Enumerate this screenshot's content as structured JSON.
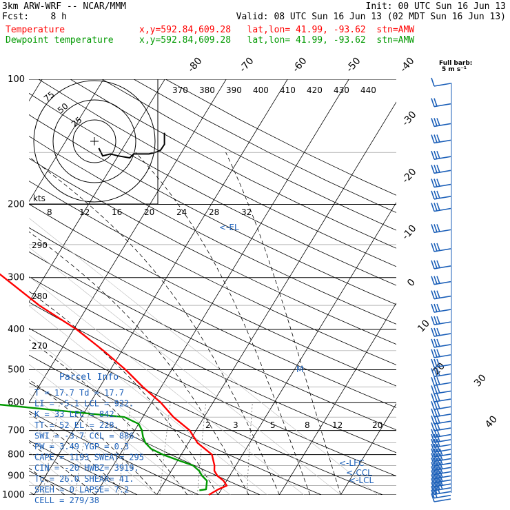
{
  "header": {
    "line1_left": "3km ARW-WRF -- NCAR/MMM",
    "line1_right": "Init: 00 UTC Sun 16 Jun 13",
    "line2_left": "Fcst:    8 h",
    "line2_right": "Valid: 08 UTC Sun 16 Jun 13 (02 MDT Sun 16 Jun 13)",
    "temp_label": "Temperature",
    "temp_info": "x,y=592.84,609.28   lat,lon= 41.99, -93.62  stn=AMW",
    "dew_label": "Dewpoint temperature",
    "dew_info": "x,y=592.84,609.28   lat,lon= 41.99, -93.62  stn=AMW"
  },
  "colors": {
    "temperature": "#ff0000",
    "dewpoint": "#009900",
    "info": "#1b5fb8",
    "hodograph": "#000000",
    "barbs": "#1b5fb8"
  },
  "barb_legend": {
    "line1": "Full barb:",
    "line2": "5 m s⁻¹"
  },
  "chart_data": {
    "type": "line",
    "subtype": "skew-T log-P sounding",
    "y_scale": "log",
    "pressure_ticks": [
      100,
      200,
      300,
      400,
      500,
      600,
      700,
      800,
      900,
      1000
    ],
    "temperature_ticks": [
      -80,
      -70,
      -60,
      -50,
      -40,
      -30,
      -20,
      -10,
      0,
      10,
      20,
      30,
      40
    ],
    "theta_labels": [
      "370",
      "380",
      "390",
      "400",
      "410",
      "420",
      "430",
      "440"
    ],
    "mixing_ratio_upper": [
      "8",
      "12",
      "16",
      "20",
      "24",
      "28",
      "32"
    ],
    "mixing_ratio_lower": [
      "2",
      "3",
      "5",
      "8",
      "12",
      "20"
    ],
    "theta_e_labels": [
      "290",
      "280",
      "270"
    ],
    "series": [
      {
        "name": "Temperature",
        "p": [
          1000,
          970,
          950,
          925,
          900,
          875,
          850,
          800,
          750,
          700,
          650,
          600,
          550,
          500,
          450,
          400,
          350,
          300,
          250,
          200,
          175,
          150,
          125,
          100
        ],
        "t": [
          18.5,
          19.5,
          20.5,
          19.5,
          18.0,
          17.0,
          16.5,
          15.0,
          11.5,
          9.0,
          5.0,
          1.5,
          -3.0,
          -7.5,
          -13.0,
          -19.5,
          -28.0,
          -36.5,
          -46.5,
          -57.0,
          -58.5,
          -59.5,
          -59.0,
          -58.0
        ]
      },
      {
        "name": "Dewpoint temperature",
        "p": [
          975,
          970,
          950,
          925,
          900,
          875,
          850,
          825,
          800,
          775,
          750,
          725,
          700,
          675,
          650,
          600,
          575,
          550,
          500,
          450,
          400,
          350,
          300,
          275,
          250,
          200,
          175,
          150,
          125,
          100
        ],
        "t": [
          16.5,
          17.5,
          17.2,
          16.8,
          15.5,
          14.5,
          13.0,
          10.0,
          7.0,
          4.5,
          3.0,
          2.0,
          1.2,
          0.0,
          -3.0,
          -28.0,
          -31.0,
          -30.0,
          -29.0,
          -35.0,
          -38.0,
          -40.0,
          -41.0,
          -55.0,
          -62.0,
          -60.0,
          -62.0,
          -64.0,
          -65.0,
          -63.0
        ]
      }
    ],
    "levels": {
      "lcl": "<-LCL",
      "ccl": "<-CCL",
      "lfc": "<-LFC",
      "el": "<-EL",
      "mu": "M"
    },
    "wind_barbs": {
      "p": [
        1000,
        980,
        960,
        940,
        920,
        900,
        880,
        860,
        840,
        820,
        800,
        780,
        760,
        740,
        720,
        700,
        675,
        650,
        625,
        600,
        575,
        550,
        525,
        500,
        475,
        450,
        425,
        400,
        375,
        350,
        325,
        300,
        275,
        250,
        225,
        200,
        187,
        175,
        162,
        150,
        137,
        125,
        112,
        100
      ],
      "speed": [
        5,
        10,
        15,
        20,
        20,
        20,
        20,
        20,
        20,
        20,
        20,
        20,
        15,
        15,
        15,
        15,
        15,
        15,
        15,
        15,
        15,
        15,
        15,
        15,
        15,
        15,
        15,
        15,
        15,
        15,
        15,
        15,
        15,
        15,
        15,
        15,
        15,
        15,
        15,
        15,
        15,
        15,
        10,
        5
      ]
    },
    "hodograph": {
      "ring_labels": [
        "75",
        "50",
        "25"
      ],
      "u": [
        -2,
        0,
        4,
        8,
        14,
        16,
        24,
        28,
        30,
        32,
        32
      ],
      "v": [
        0,
        -4,
        -3,
        -4,
        -5,
        -3,
        -3,
        -2,
        -1,
        2,
        8
      ]
    }
  },
  "parcel_info": {
    "title": "Parcel Info",
    "rows": [
      "T  =    17.7  Td =  17.7",
      "LI =    -5.1  LCL =  922.",
      "K  =      33  LFC =  842.",
      "TT =      52  EL  =  228.",
      "SWI =   -3.7  CCL =  886.",
      "PW =    3.49  YGP =   0.3",
      "CAPE =  1193  SWEAT=  295",
      "CIN =    -20  HWBZ= 3919.",
      "Tc =    26.0  SHEAR=  41.",
      "SREH =     0  LAPSE=  7.2",
      "CELL = 279/38"
    ]
  }
}
